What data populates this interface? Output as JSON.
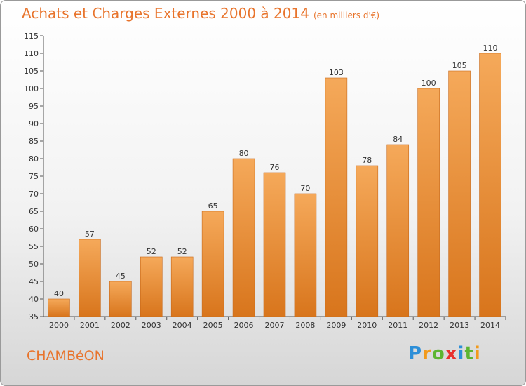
{
  "title": "Achats et Charges Externes 2000 à 2014",
  "subtitle": "(en milliers d'€)",
  "place": "CHAMBéON",
  "logo": {
    "letters": [
      "P",
      "r",
      "o",
      "x",
      "i",
      "t",
      "i"
    ],
    "colors": [
      "#2d8fd8",
      "#f29a1b",
      "#5cb531",
      "#e8322f",
      "#2d8fd8",
      "#5cb531",
      "#f29a1b"
    ]
  },
  "colors": {
    "bar_top": "#f5a95a",
    "bar_bottom": "#d8751c",
    "bar_stroke": "#c8691a",
    "title": "#e8742c"
  },
  "chart_data": {
    "type": "bar",
    "categories": [
      "2000",
      "2001",
      "2002",
      "2003",
      "2004",
      "2005",
      "2006",
      "2007",
      "2008",
      "2009",
      "2010",
      "2011",
      "2012",
      "2013",
      "2014"
    ],
    "values": [
      40,
      57,
      45,
      52,
      52,
      65,
      80,
      76,
      70,
      103,
      78,
      84,
      100,
      105,
      110
    ],
    "ylim": [
      35,
      115
    ],
    "yticks": [
      35,
      40,
      45,
      50,
      55,
      60,
      65,
      70,
      75,
      80,
      85,
      90,
      95,
      100,
      105,
      110,
      115
    ],
    "grid": false
  }
}
